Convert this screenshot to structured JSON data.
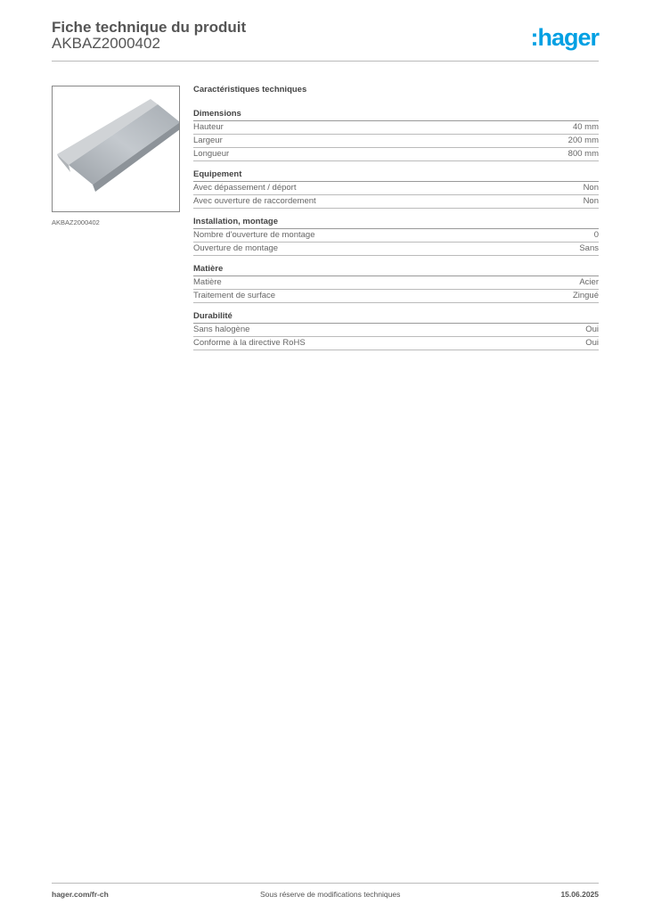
{
  "header": {
    "title": "Fiche technique du produit",
    "reference": "AKBAZ2000402",
    "logo_text": ":hager",
    "logo_color": "#00a0e3"
  },
  "product_image": {
    "caption": "AKBAZ2000402"
  },
  "specs": {
    "title": "Caractéristiques techniques",
    "sections": [
      {
        "name": "Dimensions",
        "rows": [
          {
            "label": "Hauteur",
            "value": "40 mm"
          },
          {
            "label": "Largeur",
            "value": "200 mm"
          },
          {
            "label": "Longueur",
            "value": "800 mm"
          }
        ]
      },
      {
        "name": "Equipement",
        "rows": [
          {
            "label": "Avec dépassement / déport",
            "value": "Non"
          },
          {
            "label": "Avec ouverture de raccordement",
            "value": "Non"
          }
        ]
      },
      {
        "name": "Installation, montage",
        "rows": [
          {
            "label": "Nombre d'ouverture de montage",
            "value": "0"
          },
          {
            "label": "Ouverture de montage",
            "value": "Sans"
          }
        ]
      },
      {
        "name": "Matière",
        "rows": [
          {
            "label": "Matière",
            "value": "Acier"
          },
          {
            "label": "Traitement de surface",
            "value": "Zingué"
          }
        ]
      },
      {
        "name": "Durabilité",
        "rows": [
          {
            "label": "Sans halogène",
            "value": "Oui"
          },
          {
            "label": "Conforme à la directive RoHS",
            "value": "Oui"
          }
        ]
      }
    ]
  },
  "footer": {
    "website": "hager.com/fr-ch",
    "disclaimer": "Sous réserve de modifications techniques",
    "date": "15.06.2025"
  }
}
